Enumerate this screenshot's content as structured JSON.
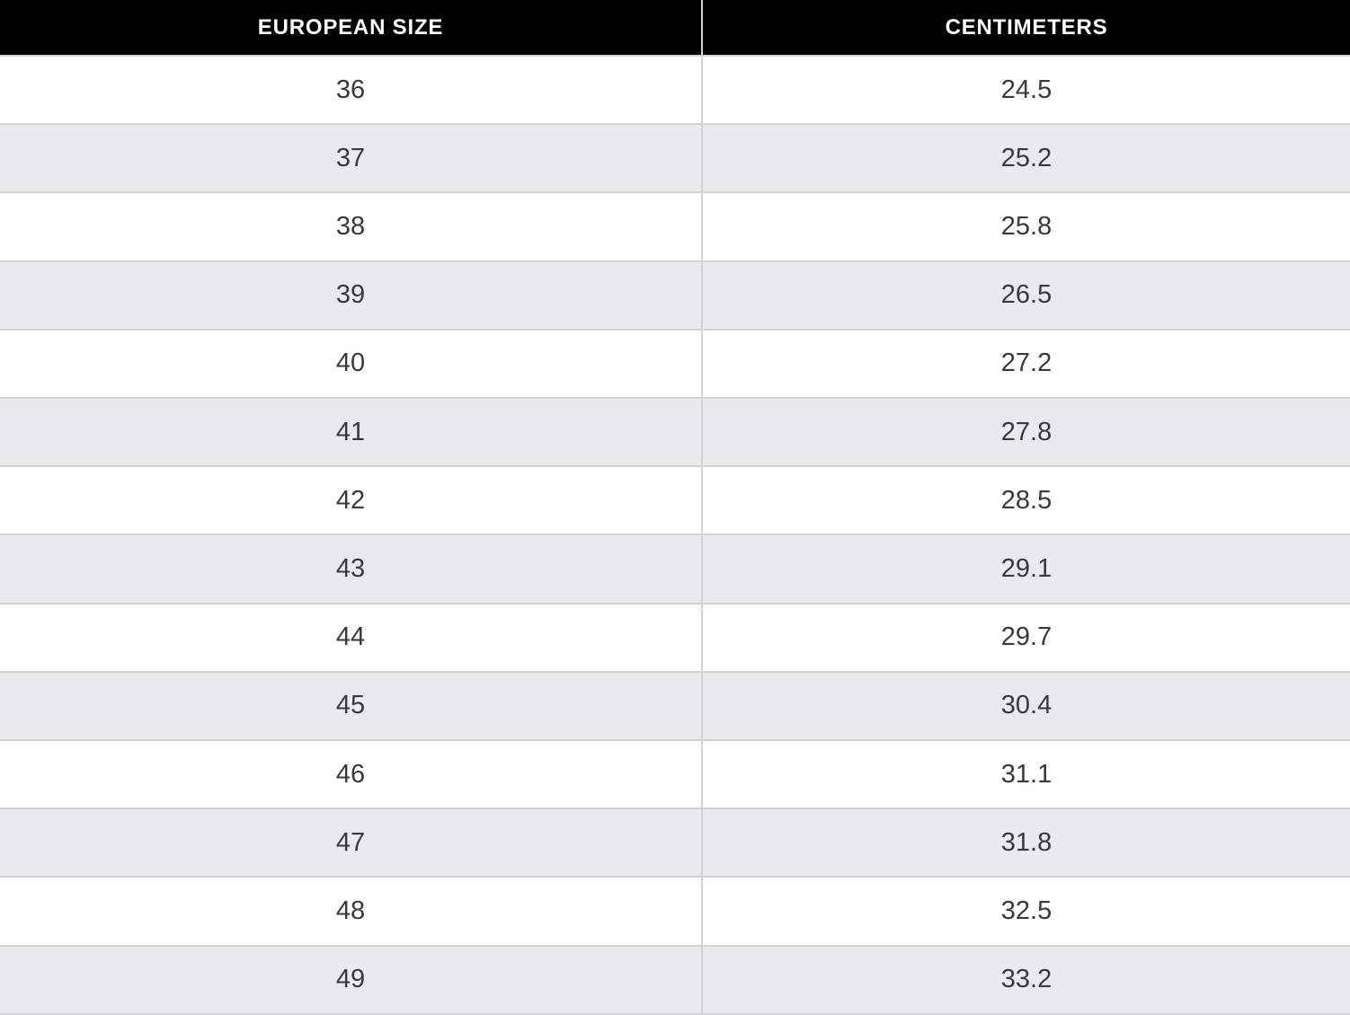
{
  "colors": {
    "header_bg": "#000000",
    "header_text": "#ffffff",
    "row_bg": "#ffffff",
    "row_alt_bg": "#eaeaec",
    "border": "#d3d3d5",
    "cell_text": "#383842"
  },
  "table": {
    "columns": [
      {
        "key": "eu",
        "label": "EUROPEAN SIZE"
      },
      {
        "key": "cm",
        "label": "CENTIMETERS"
      }
    ],
    "rows": [
      {
        "eu": "36",
        "cm": "24.5"
      },
      {
        "eu": "37",
        "cm": "25.2"
      },
      {
        "eu": "38",
        "cm": "25.8"
      },
      {
        "eu": "39",
        "cm": "26.5"
      },
      {
        "eu": "40",
        "cm": "27.2"
      },
      {
        "eu": "41",
        "cm": "27.8"
      },
      {
        "eu": "42",
        "cm": "28.5"
      },
      {
        "eu": "43",
        "cm": "29.1"
      },
      {
        "eu": "44",
        "cm": "29.7"
      },
      {
        "eu": "45",
        "cm": "30.4"
      },
      {
        "eu": "46",
        "cm": "31.1"
      },
      {
        "eu": "47",
        "cm": "31.8"
      },
      {
        "eu": "48",
        "cm": "32.5"
      },
      {
        "eu": "49",
        "cm": "33.2"
      }
    ]
  },
  "chart_data": {
    "type": "table",
    "columns": [
      "EUROPEAN SIZE",
      "CENTIMETERS"
    ],
    "rows": [
      [
        36,
        24.5
      ],
      [
        37,
        25.2
      ],
      [
        38,
        25.8
      ],
      [
        39,
        26.5
      ],
      [
        40,
        27.2
      ],
      [
        41,
        27.8
      ],
      [
        42,
        28.5
      ],
      [
        43,
        29.1
      ],
      [
        44,
        29.7
      ],
      [
        45,
        30.4
      ],
      [
        46,
        31.1
      ],
      [
        47,
        31.8
      ],
      [
        48,
        32.5
      ],
      [
        49,
        33.2
      ]
    ],
    "layout": {
      "header_position": "top",
      "row_striping": "alternating starting white",
      "text_align": "center"
    }
  }
}
